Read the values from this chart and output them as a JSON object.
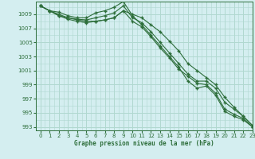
{
  "title": "Graphe pression niveau de la mer (hPa)",
  "bg_color": "#d4eef0",
  "grid_color": "#b0d8d0",
  "line_color": "#2d6e3a",
  "ylim": [
    992.5,
    1010.8
  ],
  "xlim": [
    -0.5,
    23
  ],
  "yticks": [
    993,
    995,
    997,
    999,
    1001,
    1003,
    1005,
    1007,
    1009
  ],
  "xticks": [
    0,
    1,
    2,
    3,
    4,
    5,
    6,
    7,
    8,
    9,
    10,
    11,
    12,
    13,
    14,
    15,
    16,
    17,
    18,
    19,
    20,
    21,
    22,
    23
  ],
  "series": [
    [
      1010.2,
      1009.5,
      1009.3,
      1008.8,
      1008.5,
      1008.5,
      1009.2,
      1009.5,
      1010.0,
      1010.8,
      1008.8,
      1007.5,
      1006.0,
      1004.5,
      1003.0,
      1001.5,
      999.5,
      998.5,
      998.8,
      997.5,
      995.2,
      994.5,
      994.0,
      993.0
    ],
    [
      1010.2,
      1009.5,
      1009.0,
      1008.5,
      1008.3,
      1008.2,
      1008.5,
      1008.8,
      1009.2,
      1010.2,
      1008.5,
      1007.8,
      1006.5,
      1005.0,
      1003.5,
      1002.0,
      1000.5,
      999.5,
      999.5,
      998.5,
      996.5,
      995.5,
      994.5,
      993.2
    ],
    [
      1010.2,
      1009.5,
      1008.8,
      1008.3,
      1008.0,
      1007.8,
      1008.0,
      1008.2,
      1008.5,
      1009.5,
      1008.0,
      1007.2,
      1005.8,
      1004.2,
      1002.8,
      1001.2,
      1000.2,
      999.2,
      999.0,
      997.8,
      995.5,
      994.8,
      994.2,
      993.0
    ],
    [
      1010.2,
      1009.5,
      1008.8,
      1008.5,
      1008.2,
      1008.0,
      1008.0,
      1008.2,
      1008.5,
      1009.5,
      1009.0,
      1008.5,
      1007.5,
      1006.5,
      1005.2,
      1003.8,
      1002.0,
      1001.0,
      1000.0,
      999.0,
      997.2,
      995.8,
      994.5,
      993.2
    ]
  ]
}
